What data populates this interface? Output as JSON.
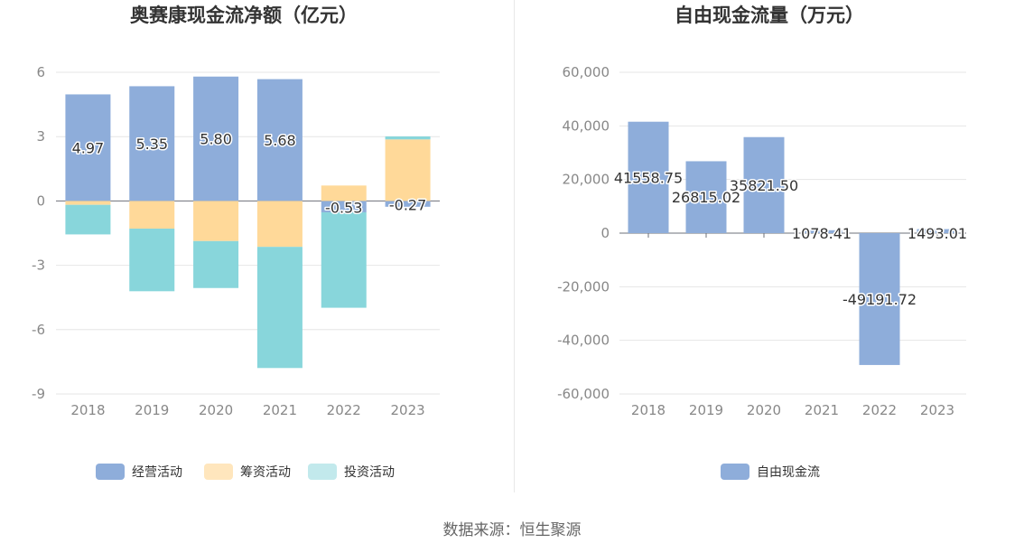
{
  "chart_data": [
    {
      "type": "bar",
      "stacked": true,
      "title": "奥赛康现金流净额（亿元）",
      "categories": [
        "2018",
        "2019",
        "2020",
        "2021",
        "2022",
        "2023"
      ],
      "ylim": [
        -9,
        6
      ],
      "yticks": [
        "6",
        "3",
        "0",
        "-3",
        "-6",
        "-9"
      ],
      "ytick_values": [
        6,
        3,
        0,
        -3,
        -6,
        -9
      ],
      "grid": true,
      "legend": "bottom",
      "series": [
        {
          "name": "经营活动",
          "color": "#8eadda",
          "values": [
            4.97,
            5.35,
            5.8,
            5.68,
            -0.53,
            -0.27
          ],
          "labels": [
            "4.97",
            "5.35",
            "5.80",
            "5.68",
            "-0.53",
            "-0.27"
          ]
        },
        {
          "name": "筹资活动",
          "color": "#ffd999",
          "values": [
            -0.18,
            -1.29,
            -1.87,
            -2.14,
            0.72,
            2.87
          ]
        },
        {
          "name": "投资活动",
          "color": "#88d6db",
          "values": [
            -1.38,
            -2.92,
            -2.19,
            -5.65,
            -4.45,
            0.14
          ]
        }
      ]
    },
    {
      "type": "bar",
      "title": "自由现金流量（万元）",
      "categories": [
        "2018",
        "2019",
        "2020",
        "2021",
        "2022",
        "2023"
      ],
      "ylim": [
        -60000,
        60000
      ],
      "yticks": [
        "60,000",
        "40,000",
        "20,000",
        "0",
        "-20,000",
        "-40,000",
        "-60,000"
      ],
      "ytick_values": [
        60000,
        40000,
        20000,
        0,
        -20000,
        -40000,
        -60000
      ],
      "grid": true,
      "legend": "bottom",
      "series": [
        {
          "name": "自由现金流",
          "color": "#8eadda",
          "values": [
            41558.75,
            26815.02,
            35821.5,
            1078.41,
            -49191.72,
            1493.01
          ],
          "labels": [
            "41558.75",
            "26815.02",
            "35821.50",
            "1078.41",
            "-49191.72",
            "1493.01"
          ]
        }
      ]
    }
  ],
  "source": "数据来源：恒生聚源"
}
